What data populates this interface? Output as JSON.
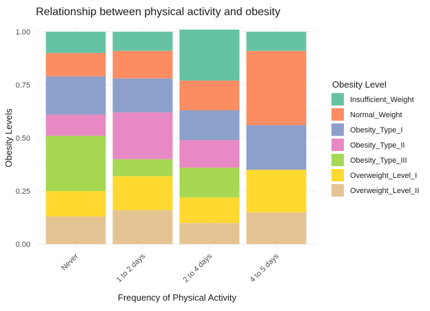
{
  "chart_data": {
    "type": "bar",
    "stacked": true,
    "normalized": true,
    "title": "Relationship between physical activity and obesity",
    "xlabel": "Frequency of Physical Activity",
    "ylabel": "Obesity Levels",
    "categories": [
      "Never",
      "1 to 2 days",
      "2 to 4 days",
      "4 to 5 days"
    ],
    "ylim": [
      0,
      1
    ],
    "yticks": [
      "0.00",
      "0.25",
      "0.50",
      "0.75",
      "1.00"
    ],
    "grid": true,
    "legend": {
      "title": "Obesity Level",
      "position": "right"
    },
    "series": [
      {
        "name": "Insufficient_Weight",
        "color": "#66C2A5",
        "values": [
          0.1,
          0.09,
          0.24,
          0.09
        ]
      },
      {
        "name": "Normal_Weight",
        "color": "#FC8D62",
        "values": [
          0.11,
          0.13,
          0.14,
          0.35
        ]
      },
      {
        "name": "Obesity_Type_I",
        "color": "#8DA0CB",
        "values": [
          0.18,
          0.16,
          0.14,
          0.21
        ]
      },
      {
        "name": "Obesity_Type_II",
        "color": "#E78AC3",
        "values": [
          0.1,
          0.22,
          0.13,
          0.0
        ]
      },
      {
        "name": "Obesity_Type_III",
        "color": "#A6D854",
        "values": [
          0.26,
          0.08,
          0.14,
          0.0
        ]
      },
      {
        "name": "Overweight_Level_I",
        "color": "#FFD92F",
        "values": [
          0.12,
          0.16,
          0.12,
          0.2
        ]
      },
      {
        "name": "Overweight_Level_II",
        "color": "#E5C494",
        "values": [
          0.13,
          0.16,
          0.1,
          0.15
        ]
      }
    ]
  }
}
